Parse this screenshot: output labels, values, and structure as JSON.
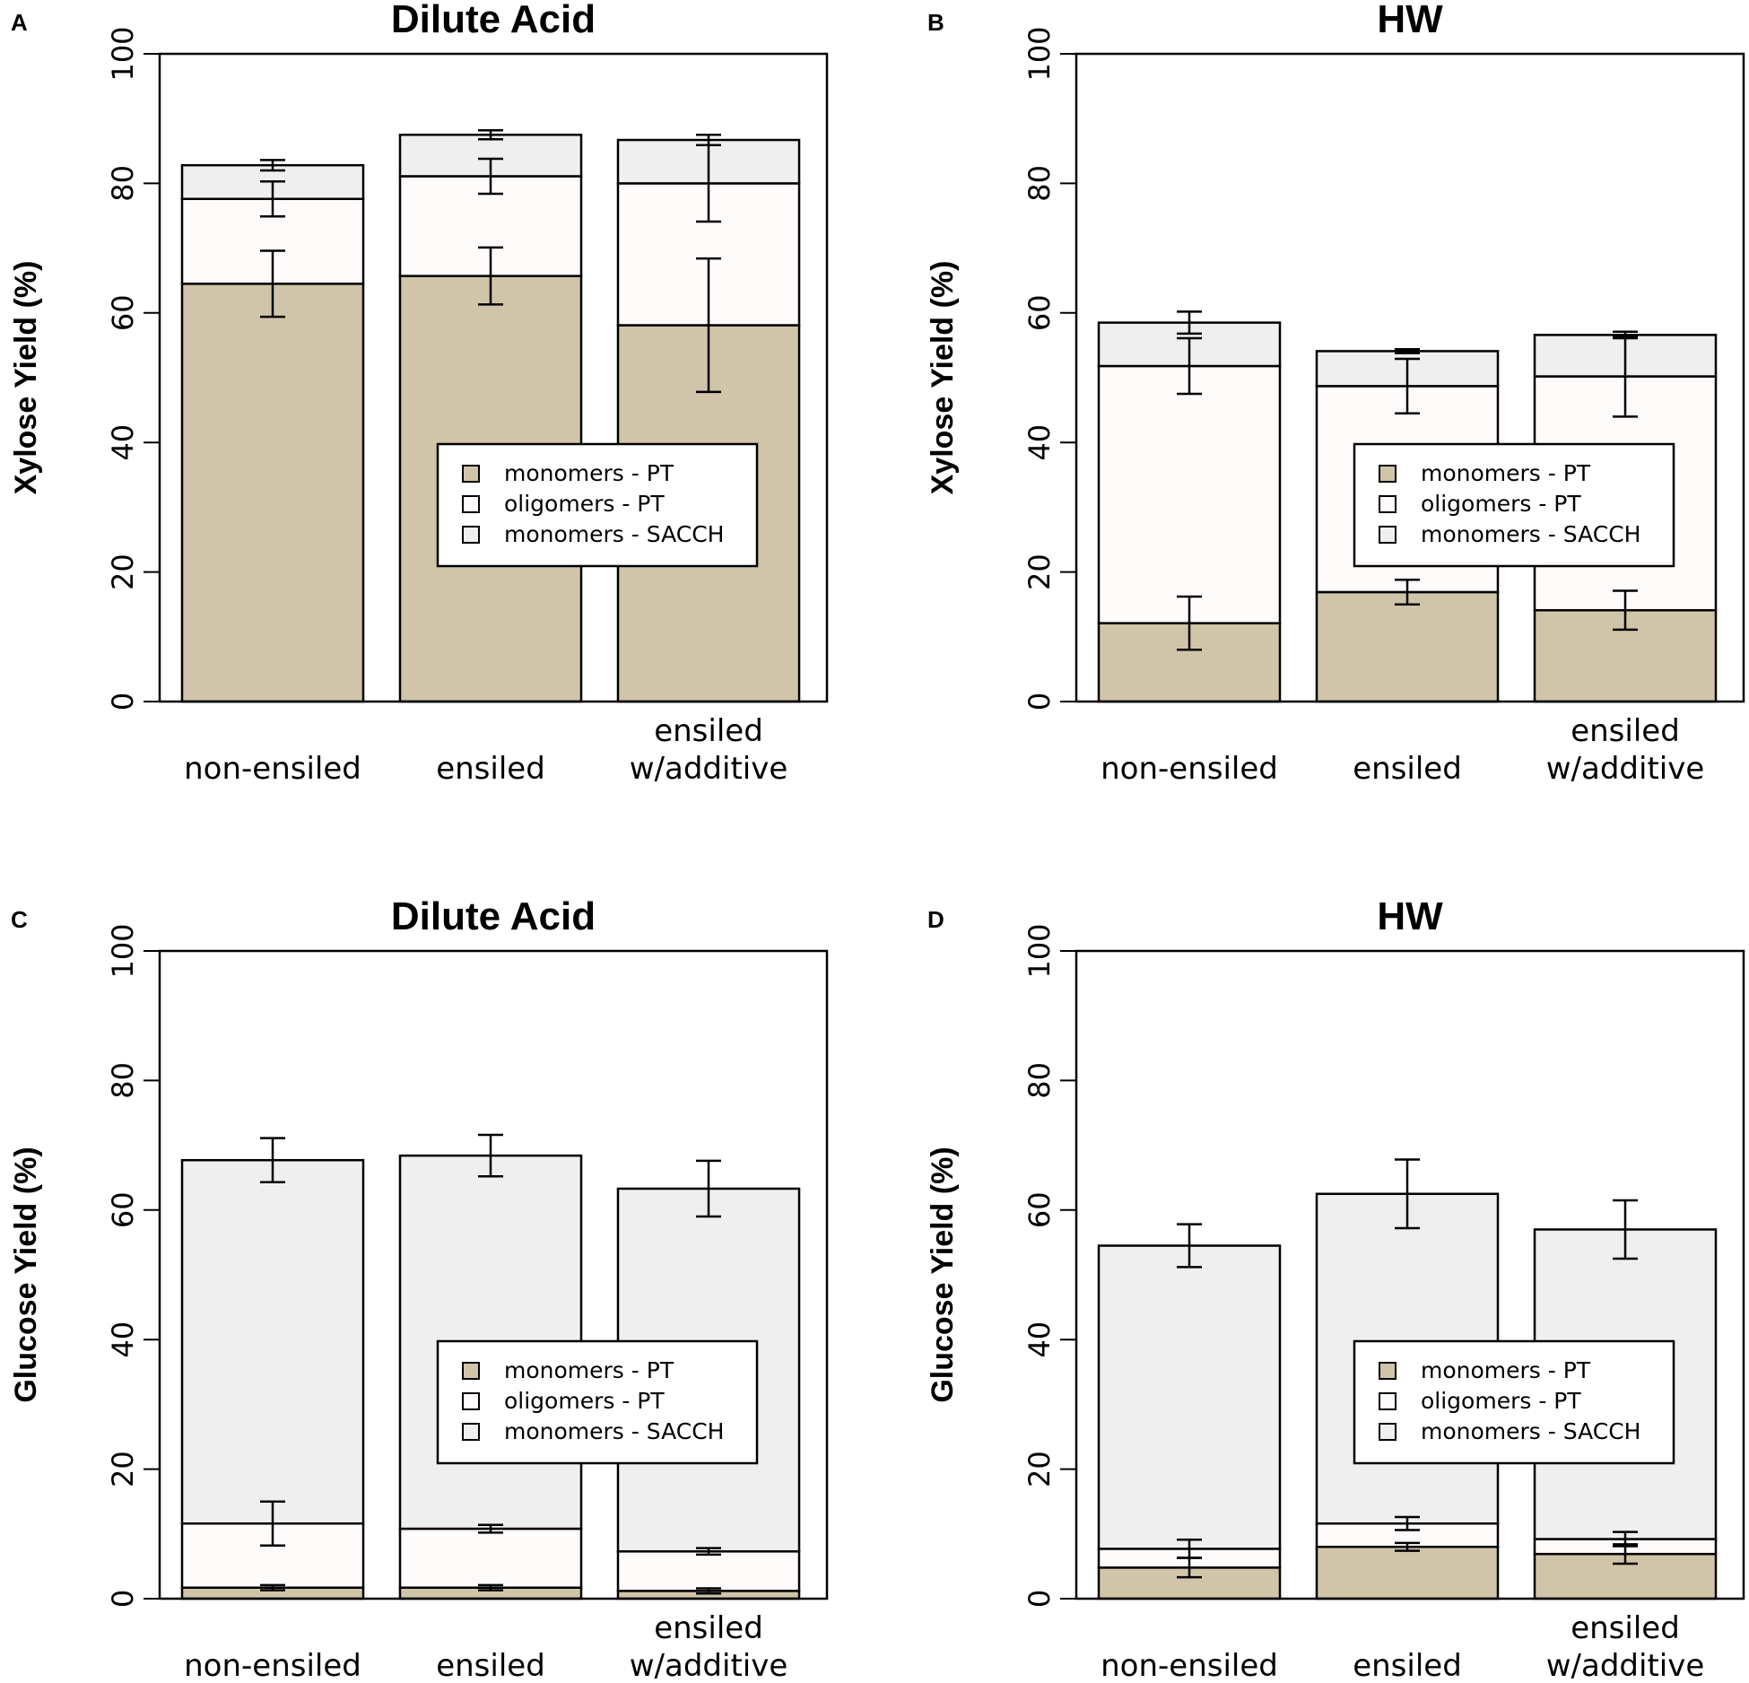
{
  "colors": {
    "monomers_pt": "#d1c5a9",
    "oligomers_pt": "#fffbfa",
    "monomers_sacch": "#efefef",
    "line": "#000000"
  },
  "chart_data": [
    {
      "panel": "A",
      "type": "bar",
      "stacked": true,
      "title": "Dilute Acid",
      "xlabel": "",
      "ylabel": "Xylose Yield (%)",
      "ylim": [
        0,
        100
      ],
      "yticks": [
        "0",
        "20",
        "40",
        "60",
        "80",
        "100"
      ],
      "categories": [
        [
          "non-ensiled"
        ],
        [
          "ensiled"
        ],
        [
          "ensiled",
          "w/additive"
        ]
      ],
      "legend": [
        "monomers - PT",
        "oligomers - PT",
        "monomers - SACCH"
      ],
      "series": [
        {
          "name": "monomers - PT",
          "values": [
            64.5,
            65.7,
            58.1
          ],
          "errors": [
            5.1,
            4.4,
            10.3
          ]
        },
        {
          "name": "oligomers - PT",
          "values": [
            13.1,
            15.4,
            21.9
          ],
          "errors": [
            2.7,
            2.7,
            5.9
          ]
        },
        {
          "name": "monomers - SACCH",
          "values": [
            5.2,
            6.4,
            6.7
          ],
          "errors": [
            0.8,
            0.7,
            0.8
          ]
        }
      ]
    },
    {
      "panel": "B",
      "type": "bar",
      "stacked": true,
      "title": "HW",
      "xlabel": "",
      "ylabel": "Xylose Yield (%)",
      "ylim": [
        0,
        100
      ],
      "yticks": [
        "0",
        "20",
        "40",
        "60",
        "80",
        "100"
      ],
      "categories": [
        [
          "non-ensiled"
        ],
        [
          "ensiled"
        ],
        [
          "ensiled",
          "w/additive"
        ]
      ],
      "legend": [
        "monomers - PT",
        "oligomers - PT",
        "monomers - SACCH"
      ],
      "series": [
        {
          "name": "monomers - PT",
          "values": [
            12.1,
            16.9,
            14.1
          ],
          "errors": [
            4.1,
            1.9,
            3.0
          ]
        },
        {
          "name": "oligomers - PT",
          "values": [
            39.7,
            31.8,
            36.1
          ],
          "errors": [
            4.3,
            4.2,
            6.2
          ]
        },
        {
          "name": "monomers - SACCH",
          "values": [
            6.7,
            5.4,
            6.4
          ],
          "errors": [
            1.7,
            0.3,
            0.5
          ]
        }
      ]
    },
    {
      "panel": "C",
      "type": "bar",
      "stacked": true,
      "title": "Dilute Acid",
      "xlabel": "",
      "ylabel": "Glucose Yield (%)",
      "ylim": [
        0,
        100
      ],
      "yticks": [
        "0",
        "20",
        "40",
        "60",
        "80",
        "100"
      ],
      "categories": [
        [
          "non-ensiled"
        ],
        [
          "ensiled"
        ],
        [
          "ensiled",
          "w/additive"
        ]
      ],
      "legend": [
        "monomers - PT",
        "oligomers - PT",
        "monomers - SACCH"
      ],
      "series": [
        {
          "name": "monomers - PT",
          "values": [
            1.7,
            1.7,
            1.2
          ],
          "errors": [
            0.4,
            0.4,
            0.4
          ]
        },
        {
          "name": "oligomers - PT",
          "values": [
            9.9,
            9.1,
            6.1
          ],
          "errors": [
            3.4,
            0.6,
            0.5
          ]
        },
        {
          "name": "monomers - SACCH",
          "values": [
            56.1,
            57.6,
            56.0
          ],
          "errors": [
            3.4,
            3.2,
            4.3
          ]
        }
      ]
    },
    {
      "panel": "D",
      "type": "bar",
      "stacked": true,
      "title": "HW",
      "xlabel": "",
      "ylabel": "Glucose Yield (%)",
      "ylim": [
        0,
        100
      ],
      "yticks": [
        "0",
        "20",
        "40",
        "60",
        "80",
        "100"
      ],
      "categories": [
        [
          "non-ensiled"
        ],
        [
          "ensiled"
        ],
        [
          "ensiled",
          "w/additive"
        ]
      ],
      "legend": [
        "monomers - PT",
        "oligomers - PT",
        "monomers - SACCH"
      ],
      "series": [
        {
          "name": "monomers - PT",
          "values": [
            4.8,
            8.0,
            6.9
          ],
          "errors": [
            1.5,
            0.6,
            1.5
          ]
        },
        {
          "name": "oligomers - PT",
          "values": [
            2.9,
            3.6,
            2.3
          ],
          "errors": [
            1.4,
            1.0,
            1.1
          ]
        },
        {
          "name": "monomers - SACCH",
          "values": [
            46.8,
            50.9,
            47.8
          ],
          "errors": [
            3.3,
            5.3,
            4.5
          ]
        }
      ]
    }
  ]
}
